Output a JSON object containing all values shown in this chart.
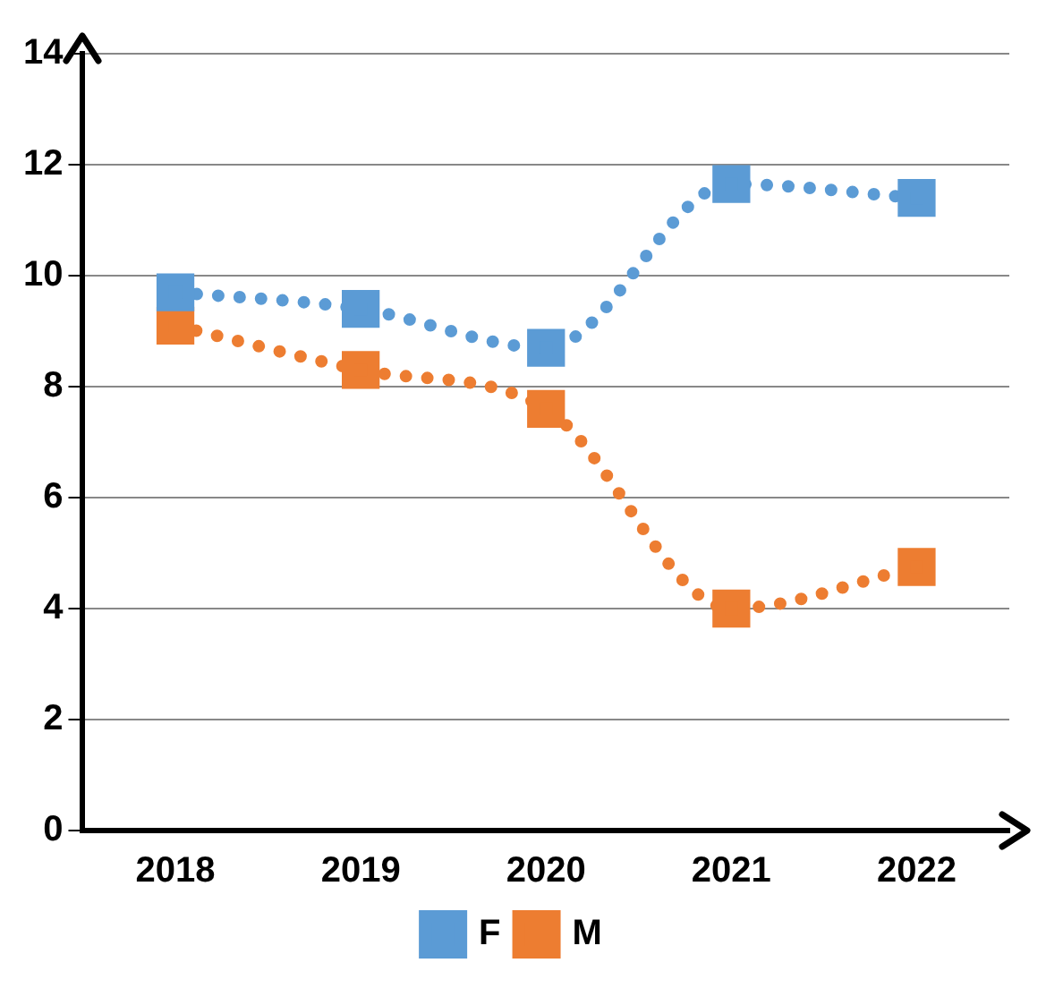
{
  "chart_data": {
    "type": "line",
    "categories": [
      "2018",
      "2019",
      "2020",
      "2021",
      "2022"
    ],
    "series": [
      {
        "name": "F",
        "color": "#5b9bd5",
        "values": [
          9.7,
          9.4,
          8.7,
          11.65,
          11.4
        ]
      },
      {
        "name": "M",
        "color": "#ed7d31",
        "values": [
          9.1,
          8.3,
          7.6,
          4.0,
          4.75
        ]
      }
    ],
    "ylim": [
      0,
      14
    ],
    "yticks": [
      0,
      2,
      4,
      6,
      8,
      10,
      12,
      14
    ],
    "grid": "y",
    "legend": "bottom",
    "marker": "square",
    "line_style": "dotted"
  }
}
